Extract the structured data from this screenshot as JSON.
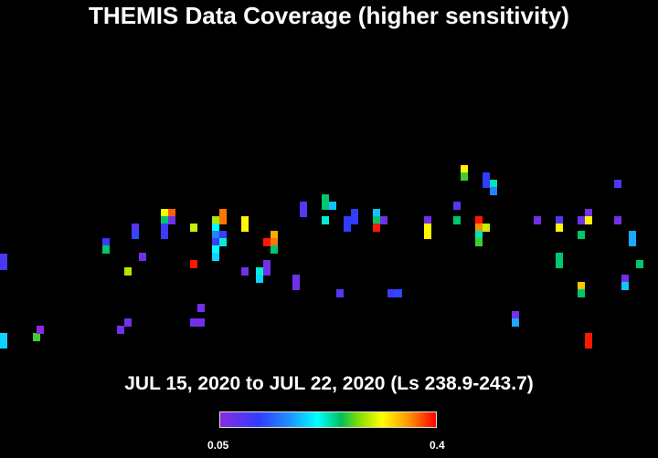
{
  "chart_data": {
    "type": "heatmap",
    "title": "THEMIS Data Coverage (higher sensitivity)",
    "subtitle": "JUL 15, 2020 to JUL 22, 2020 (Ls 238.9-243.7)",
    "colorbar": {
      "min_label": "0.05",
      "max_label": "0.4",
      "min": 0.05,
      "max": 0.4
    },
    "cells": [
      [
        0,
        278,
        0.12
      ],
      [
        0,
        287,
        0.14
      ],
      [
        0,
        365,
        0.4
      ],
      [
        0,
        373,
        0.4
      ],
      [
        36,
        365,
        0.6
      ],
      [
        40,
        357,
        0.0
      ],
      [
        112,
        261,
        0.15
      ],
      [
        112,
        269,
        0.55
      ],
      [
        136,
        293,
        0.68
      ],
      [
        128,
        357,
        0.05
      ],
      [
        136,
        349,
        0.05
      ],
      [
        144,
        245,
        0.1
      ],
      [
        144,
        253,
        0.2
      ],
      [
        152,
        277,
        0.05
      ],
      [
        176,
        229,
        0.75
      ],
      [
        176,
        237,
        0.55
      ],
      [
        176,
        245,
        0.15
      ],
      [
        176,
        253,
        0.15
      ],
      [
        184,
        229,
        0.92
      ],
      [
        184,
        237,
        0.05
      ],
      [
        208,
        245,
        0.7
      ],
      [
        208,
        285,
        0.98
      ],
      [
        216,
        333,
        0.05
      ],
      [
        208,
        349,
        0.05
      ],
      [
        216,
        349,
        0.05
      ],
      [
        232,
        237,
        0.68
      ],
      [
        232,
        245,
        0.45
      ],
      [
        232,
        253,
        0.3
      ],
      [
        232,
        261,
        0.15
      ],
      [
        232,
        269,
        0.45
      ],
      [
        232,
        277,
        0.4
      ],
      [
        240,
        229,
        0.9
      ],
      [
        240,
        237,
        0.9
      ],
      [
        240,
        253,
        0.15
      ],
      [
        240,
        261,
        0.48
      ],
      [
        264,
        237,
        0.76
      ],
      [
        264,
        245,
        0.76
      ],
      [
        264,
        293,
        0.05
      ],
      [
        280,
        293,
        0.48
      ],
      [
        280,
        301,
        0.4
      ],
      [
        288,
        261,
        0.98
      ],
      [
        288,
        285,
        0.05
      ],
      [
        288,
        293,
        0.05
      ],
      [
        296,
        253,
        0.85
      ],
      [
        296,
        261,
        0.9
      ],
      [
        296,
        269,
        0.55
      ],
      [
        320,
        301,
        0.05
      ],
      [
        320,
        309,
        0.05
      ],
      [
        328,
        221,
        0.1
      ],
      [
        328,
        229,
        0.1
      ],
      [
        352,
        213,
        0.55
      ],
      [
        352,
        221,
        0.55
      ],
      [
        352,
        237,
        0.48
      ],
      [
        360,
        221,
        0.38
      ],
      [
        368,
        317,
        0.1
      ],
      [
        376,
        237,
        0.18
      ],
      [
        376,
        245,
        0.18
      ],
      [
        384,
        229,
        0.18
      ],
      [
        384,
        237,
        0.18
      ],
      [
        408,
        229,
        0.38
      ],
      [
        408,
        237,
        0.55
      ],
      [
        408,
        245,
        0.98
      ],
      [
        416,
        237,
        0.05
      ],
      [
        424,
        317,
        0.15
      ],
      [
        432,
        317,
        0.2
      ],
      [
        464,
        237,
        0.05
      ],
      [
        464,
        245,
        0.76
      ],
      [
        464,
        253,
        0.76
      ],
      [
        496,
        221,
        0.1
      ],
      [
        496,
        237,
        0.55
      ],
      [
        504,
        181,
        0.76
      ],
      [
        504,
        189,
        0.6
      ],
      [
        520,
        237,
        0.98
      ],
      [
        520,
        245,
        0.88
      ],
      [
        520,
        253,
        0.5
      ],
      [
        520,
        261,
        0.6
      ],
      [
        528,
        189,
        0.18
      ],
      [
        528,
        197,
        0.18
      ],
      [
        528,
        245,
        0.7
      ],
      [
        536,
        197,
        0.5
      ],
      [
        536,
        205,
        0.3
      ],
      [
        560,
        341,
        0.05
      ],
      [
        560,
        349,
        0.35
      ],
      [
        584,
        237,
        0.05
      ],
      [
        608,
        237,
        0.1
      ],
      [
        608,
        245,
        0.76
      ],
      [
        608,
        277,
        0.55
      ],
      [
        608,
        285,
        0.55
      ],
      [
        632,
        237,
        0.05
      ],
      [
        632,
        253,
        0.55
      ],
      [
        632,
        309,
        0.82
      ],
      [
        632,
        317,
        0.55
      ],
      [
        640,
        229,
        0.05
      ],
      [
        640,
        237,
        0.76
      ],
      [
        640,
        365,
        0.98
      ],
      [
        640,
        373,
        0.98
      ],
      [
        672,
        197,
        0.12
      ],
      [
        672,
        237,
        0.05
      ],
      [
        680,
        301,
        0.05
      ],
      [
        680,
        309,
        0.38
      ],
      [
        688,
        253,
        0.35
      ],
      [
        688,
        261,
        0.35
      ],
      [
        696,
        285,
        0.55
      ]
    ]
  }
}
